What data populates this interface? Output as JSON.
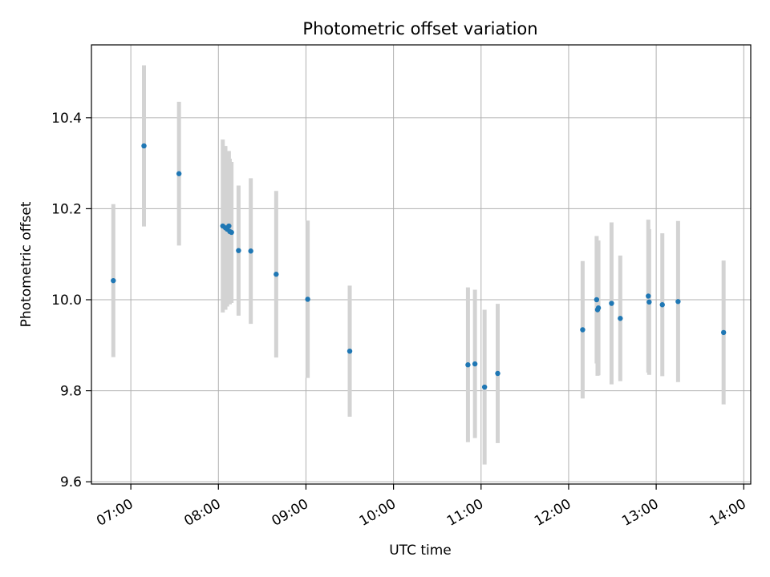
{
  "chart_data": {
    "type": "scatter",
    "title": "Photometric offset variation",
    "xlabel": "UTC time",
    "ylabel": "Photometric offset",
    "x_unit": "hours UTC",
    "xlim": [
      6.55,
      14.08
    ],
    "ylim": [
      9.595,
      10.56
    ],
    "grid": true,
    "x_ticks": [
      {
        "value": 7,
        "label": "07:00"
      },
      {
        "value": 8,
        "label": "08:00"
      },
      {
        "value": 9,
        "label": "09:00"
      },
      {
        "value": 10,
        "label": "10:00"
      },
      {
        "value": 11,
        "label": "11:00"
      },
      {
        "value": 12,
        "label": "12:00"
      },
      {
        "value": 13,
        "label": "13:00"
      },
      {
        "value": 14,
        "label": "14:00"
      }
    ],
    "y_ticks": [
      {
        "value": 9.6,
        "label": "9.6"
      },
      {
        "value": 9.8,
        "label": "9.8"
      },
      {
        "value": 10.0,
        "label": "10.0"
      },
      {
        "value": 10.2,
        "label": "10.2"
      },
      {
        "value": 10.4,
        "label": "10.4"
      }
    ],
    "colors": {
      "point": "#1f77b4",
      "errorbar": "#d3d3d3",
      "grid": "#b0b0b0"
    },
    "points": [
      {
        "x": 6.8,
        "y": 10.042,
        "err": 0.168
      },
      {
        "x": 7.15,
        "y": 10.338,
        "err": 0.177
      },
      {
        "x": 7.55,
        "y": 10.277,
        "err": 0.158
      },
      {
        "x": 8.05,
        "y": 10.162,
        "err": 0.19
      },
      {
        "x": 8.08,
        "y": 10.158,
        "err": 0.18
      },
      {
        "x": 8.1,
        "y": 10.155,
        "err": 0.17
      },
      {
        "x": 8.12,
        "y": 10.162,
        "err": 0.165
      },
      {
        "x": 8.13,
        "y": 10.15,
        "err": 0.16
      },
      {
        "x": 8.15,
        "y": 10.148,
        "err": 0.155
      },
      {
        "x": 8.23,
        "y": 10.108,
        "err": 0.143
      },
      {
        "x": 8.37,
        "y": 10.107,
        "err": 0.16
      },
      {
        "x": 8.66,
        "y": 10.056,
        "err": 0.183
      },
      {
        "x": 9.02,
        "y": 10.001,
        "err": 0.173
      },
      {
        "x": 9.5,
        "y": 9.887,
        "err": 0.144
      },
      {
        "x": 10.85,
        "y": 9.857,
        "err": 0.17
      },
      {
        "x": 10.93,
        "y": 9.859,
        "err": 0.163
      },
      {
        "x": 11.04,
        "y": 9.808,
        "err": 0.17
      },
      {
        "x": 11.19,
        "y": 9.838,
        "err": 0.153
      },
      {
        "x": 12.16,
        "y": 9.934,
        "err": 0.151
      },
      {
        "x": 12.32,
        "y": 10.0,
        "err": 0.14
      },
      {
        "x": 12.33,
        "y": 9.978,
        "err": 0.145
      },
      {
        "x": 12.34,
        "y": 9.982,
        "err": 0.148
      },
      {
        "x": 12.49,
        "y": 9.992,
        "err": 0.178
      },
      {
        "x": 12.59,
        "y": 9.959,
        "err": 0.138
      },
      {
        "x": 12.91,
        "y": 10.008,
        "err": 0.168
      },
      {
        "x": 12.92,
        "y": 9.995,
        "err": 0.16
      },
      {
        "x": 13.07,
        "y": 9.989,
        "err": 0.157
      },
      {
        "x": 13.25,
        "y": 9.996,
        "err": 0.177
      },
      {
        "x": 13.77,
        "y": 9.928,
        "err": 0.158
      }
    ]
  }
}
